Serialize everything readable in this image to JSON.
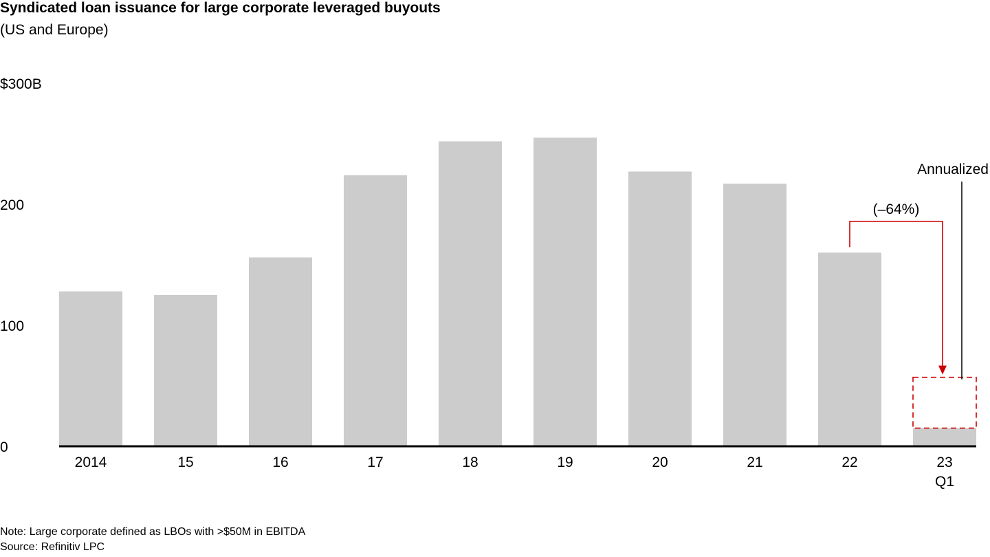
{
  "header": {
    "title": "Syndicated loan issuance for large corporate leveraged buyouts",
    "subtitle": "(US and Europe)"
  },
  "chart_data": {
    "type": "bar",
    "title": "Syndicated loan issuance for large corporate leveraged buyouts",
    "subtitle": "(US and Europe)",
    "categories": [
      "2014",
      "15",
      "16",
      "17",
      "18",
      "19",
      "20",
      "21",
      "22",
      "23"
    ],
    "category_sublabels": [
      "",
      "",
      "",
      "",
      "",
      "",
      "",
      "",
      "",
      "Q1"
    ],
    "values": [
      128,
      125,
      156,
      224,
      252,
      255,
      227,
      217,
      160,
      15
    ],
    "annualized": {
      "category": "23",
      "value": 57,
      "label": "Annualized"
    },
    "change_annotation": {
      "from": "22",
      "to": "23",
      "label": "(–64%)"
    },
    "y_ticks": [
      0,
      100,
      200,
      300
    ],
    "y_tick_labels": [
      "0",
      "100",
      "200",
      "$300B"
    ],
    "ylim": [
      0,
      300
    ],
    "grid": false,
    "colors": {
      "bar": "#cccccc",
      "axis": "#000000",
      "annotation": "#cc0000"
    }
  },
  "footer": {
    "note": "Note: Large corporate defined as LBOs with >$50M in EBITDA",
    "source": "Source: Refinitiv LPC"
  }
}
